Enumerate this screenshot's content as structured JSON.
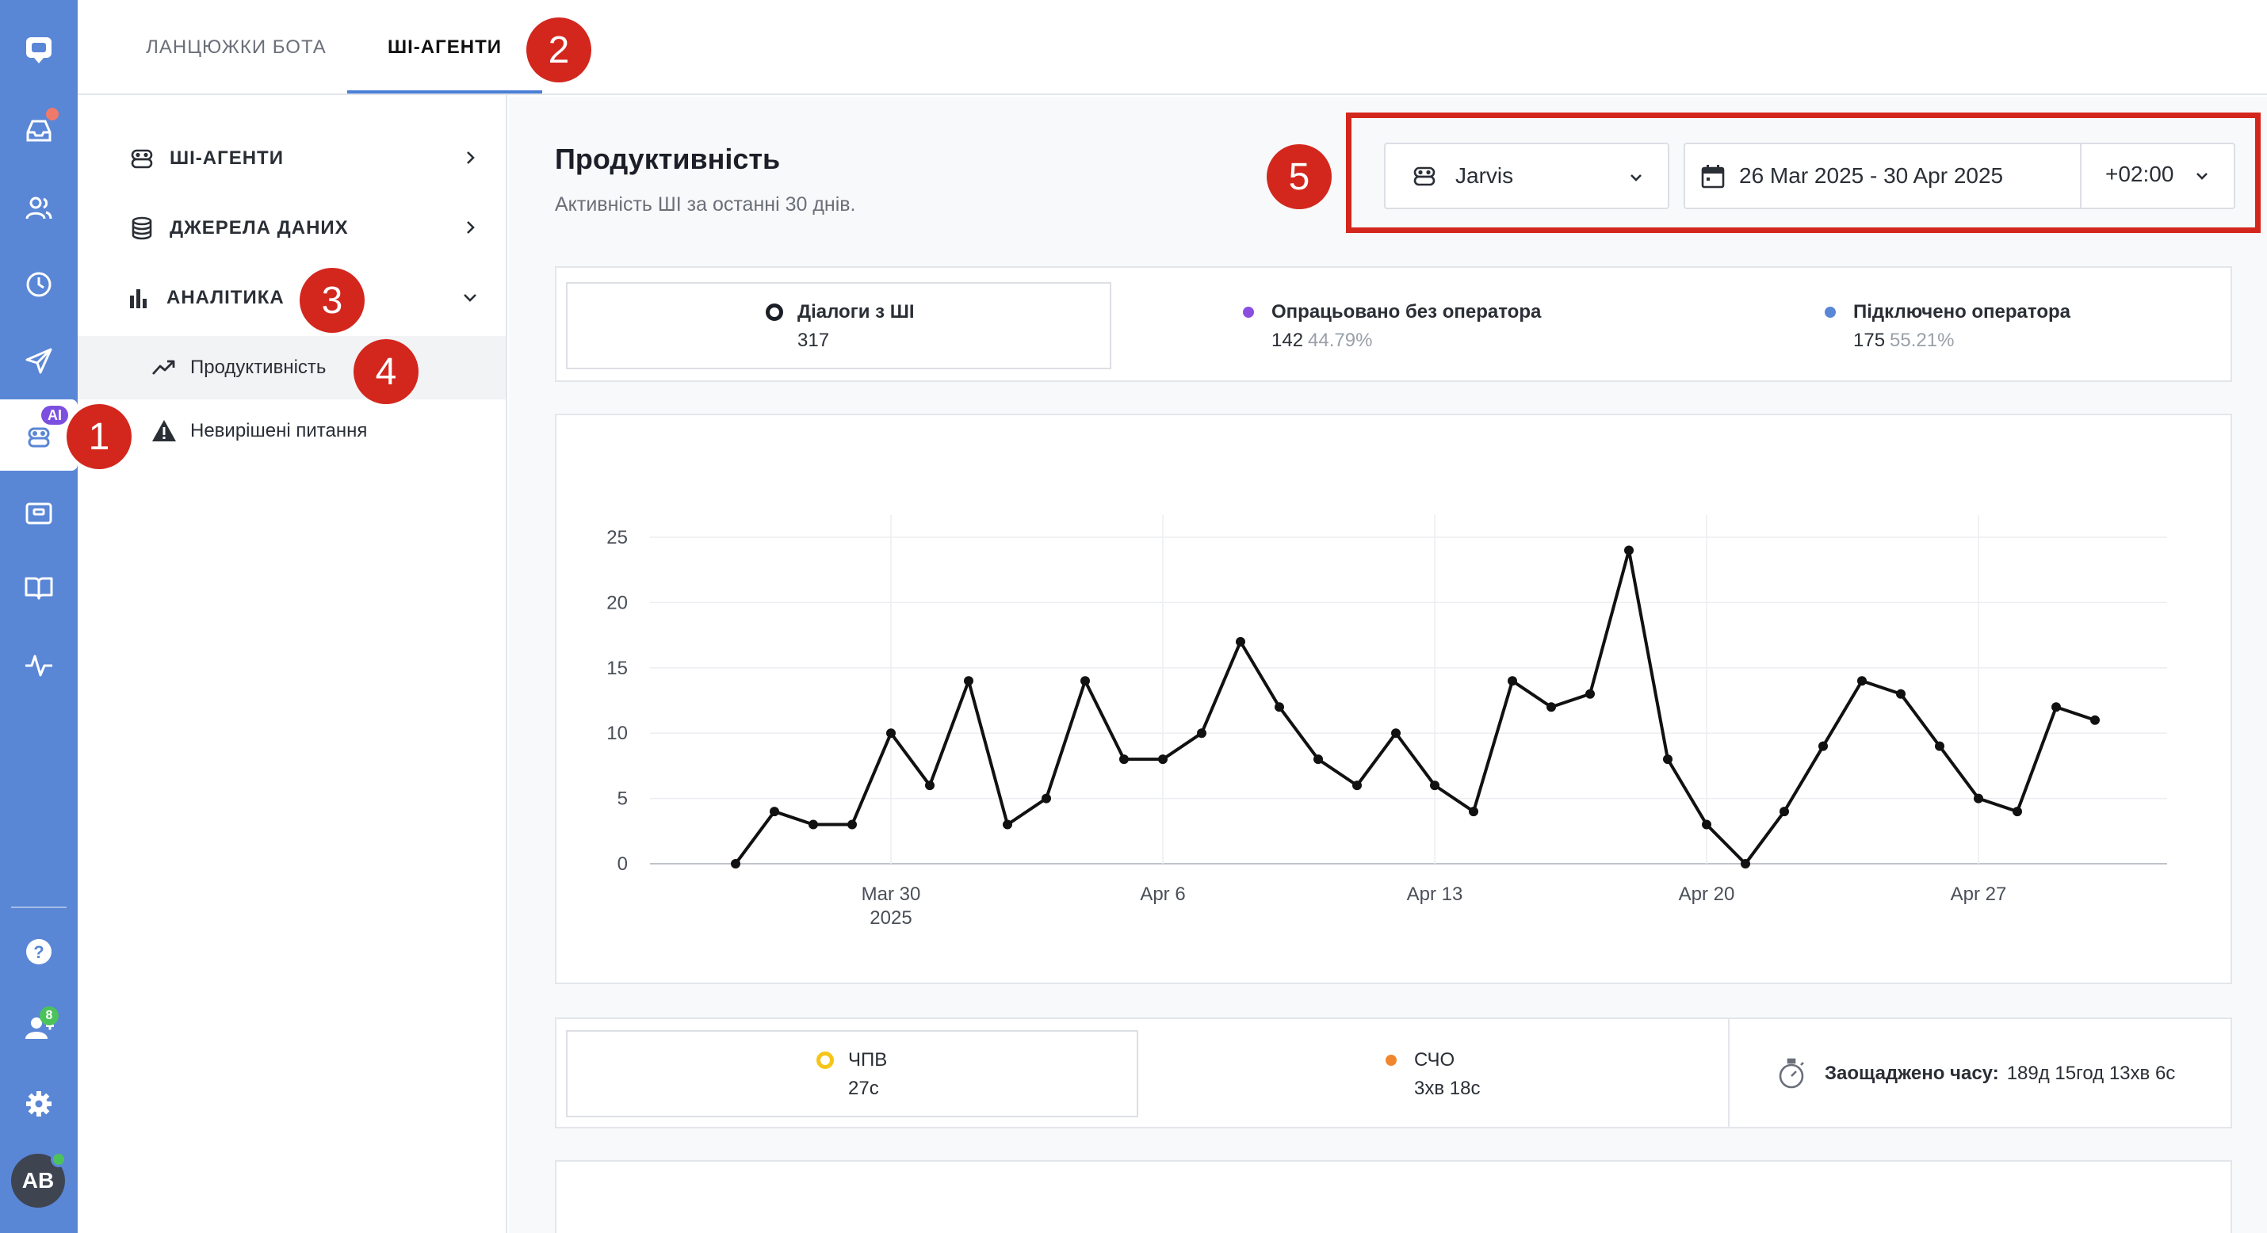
{
  "tabs": [
    {
      "label": "ЛАНЦЮЖКИ БОТА"
    },
    {
      "label": "ШІ-АГЕНТИ"
    }
  ],
  "rail": {
    "ai_badge": "AI",
    "team_badge": "8",
    "avatar_initials": "AB"
  },
  "sidebar": {
    "items": [
      {
        "label": "ШІ-АГЕНТИ"
      },
      {
        "label": "ДЖЕРЕЛА ДАНИХ"
      },
      {
        "label": "АНАЛІТИКА"
      }
    ],
    "sub_items": [
      {
        "label": "Продуктивність"
      },
      {
        "label": "Невирішені питання"
      }
    ]
  },
  "page": {
    "title": "Продуктивність",
    "subtitle": "Активність ШІ за останні 30 днів."
  },
  "filters": {
    "agent": "Jarvis",
    "date_range": "26 Mar 2025 - 30 Apr 2025",
    "timezone": "+02:00"
  },
  "summary": {
    "dialogs_label": "Діалоги з ШІ",
    "dialogs_value": "317",
    "resolved_label": "Опрацьовано без оператора",
    "resolved_value": "142",
    "resolved_pct": "44.79%",
    "operator_label": "Підключено оператора",
    "operator_value": "175",
    "operator_pct": "55.21%"
  },
  "metrics": {
    "frt_label": "ЧПВ",
    "frt_value": "27с",
    "avg_label": "СЧО",
    "avg_value": "3хв 18с",
    "saved_label": "Заощаджено часу:",
    "saved_value": "189д 15год 13хв 6с"
  },
  "colors": {
    "rail": "#5a86d6",
    "accent": "#4b7fd6",
    "resolved": "#8a4fe0",
    "operator": "#5a86d6",
    "frt": "#f5c518",
    "avg": "#f0862e",
    "annotation": "#d3271e"
  },
  "annotations": [
    "1",
    "2",
    "3",
    "4",
    "5"
  ],
  "chart_data": {
    "type": "line",
    "x_start": "2025-03-26",
    "x_tick_labels": [
      "Mar 30",
      "2025",
      "Apr 6",
      "Apr 13",
      "Apr 20",
      "Apr 27"
    ],
    "y_ticks": [
      "0",
      "5",
      "10",
      "15",
      "20",
      "25"
    ],
    "ylim": [
      0,
      25
    ],
    "series": [
      {
        "values": [
          0,
          4,
          3,
          3,
          10,
          6,
          14,
          3,
          5,
          14,
          8,
          8,
          10,
          17,
          12,
          8,
          6,
          10,
          6,
          4,
          14,
          12,
          13,
          24,
          8,
          3,
          0,
          4,
          9,
          14,
          13,
          9,
          5,
          4,
          12,
          11
        ]
      }
    ],
    "grid": true
  }
}
